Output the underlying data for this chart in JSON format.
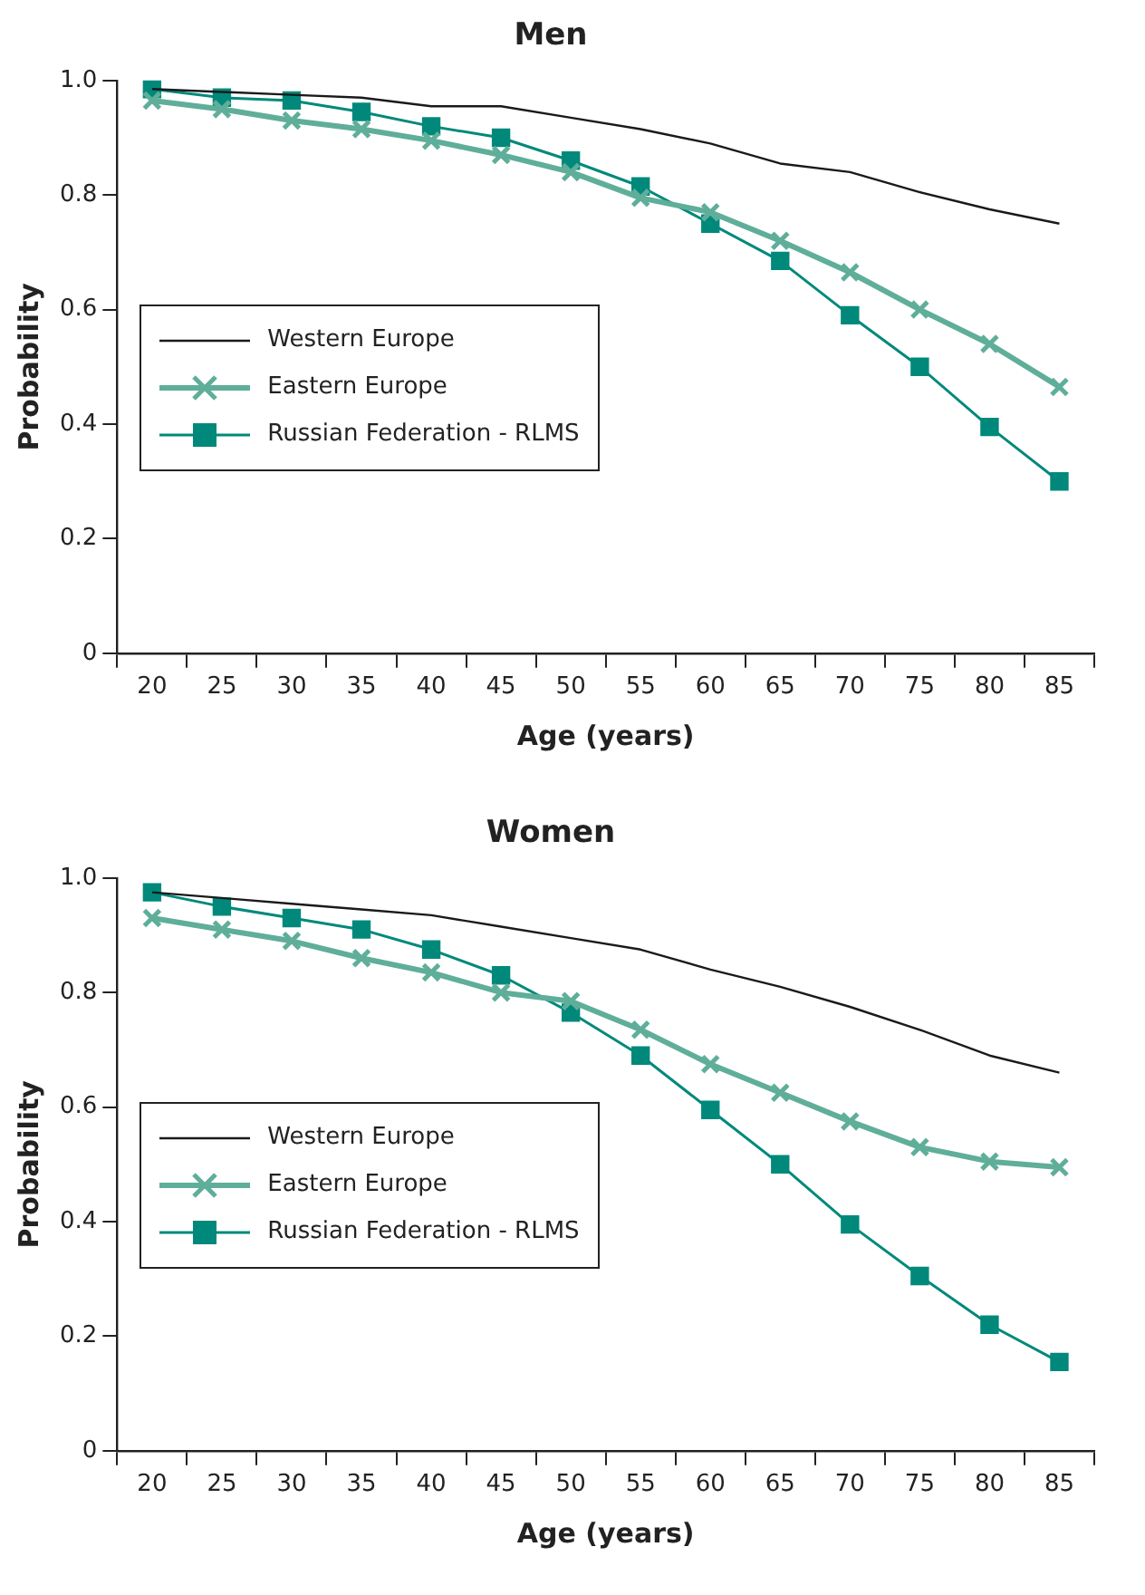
{
  "chart_data": [
    {
      "type": "line",
      "title": "Men",
      "xlabel": "Age (years)",
      "ylabel": "Probability",
      "categories": [
        "20",
        "25",
        "30",
        "35",
        "40",
        "45",
        "50",
        "55",
        "60",
        "65",
        "70",
        "75",
        "80",
        "85"
      ],
      "series": [
        {
          "name": "Western Europe",
          "color": "#1a1a1a",
          "marker": "none",
          "values": [
            0.985,
            0.98,
            0.975,
            0.97,
            0.955,
            0.955,
            0.935,
            0.915,
            0.89,
            0.855,
            0.84,
            0.805,
            0.775,
            0.75
          ]
        },
        {
          "name": "Eastern Europe",
          "color": "#5fae9a",
          "marker": "cross",
          "values": [
            0.965,
            0.95,
            0.93,
            0.915,
            0.895,
            0.87,
            0.84,
            0.795,
            0.77,
            0.72,
            0.665,
            0.6,
            0.54,
            0.465
          ]
        },
        {
          "name": "Russian Federation - RLMS",
          "color": "#00897b",
          "marker": "square",
          "values": [
            0.985,
            0.97,
            0.965,
            0.945,
            0.92,
            0.9,
            0.86,
            0.815,
            0.75,
            0.685,
            0.59,
            0.5,
            0.395,
            0.3
          ]
        }
      ],
      "ylim": [
        0,
        1
      ],
      "yticks": [
        0,
        0.2,
        0.4,
        0.6,
        0.8,
        {
          "value": 1,
          "label": "1.0"
        }
      ],
      "grid": false,
      "legend": "left"
    },
    {
      "type": "line",
      "title": "Women",
      "xlabel": "Age (years)",
      "ylabel": "Probability",
      "categories": [
        "20",
        "25",
        "30",
        "35",
        "40",
        "45",
        "50",
        "55",
        "60",
        "65",
        "70",
        "75",
        "80",
        "85"
      ],
      "series": [
        {
          "name": "Western Europe",
          "color": "#1a1a1a",
          "marker": "none",
          "values": [
            0.975,
            0.965,
            0.955,
            0.945,
            0.935,
            0.915,
            0.895,
            0.875,
            0.84,
            0.81,
            0.775,
            0.735,
            0.69,
            0.66
          ]
        },
        {
          "name": "Eastern Europe",
          "color": "#5fae9a",
          "marker": "cross",
          "values": [
            0.93,
            0.91,
            0.89,
            0.86,
            0.835,
            0.8,
            0.785,
            0.735,
            0.675,
            0.625,
            0.575,
            0.53,
            0.505,
            0.495
          ]
        },
        {
          "name": "Russian Federation - RLMS",
          "color": "#00897b",
          "marker": "square",
          "values": [
            0.975,
            0.95,
            0.93,
            0.91,
            0.875,
            0.83,
            0.765,
            0.69,
            0.595,
            0.5,
            0.395,
            0.305,
            0.22,
            0.155
          ]
        }
      ],
      "ylim": [
        0,
        1
      ],
      "yticks": [
        0,
        0.2,
        0.4,
        0.6,
        0.8,
        {
          "value": 1,
          "label": "1.0"
        }
      ],
      "grid": false,
      "legend": "left"
    }
  ]
}
